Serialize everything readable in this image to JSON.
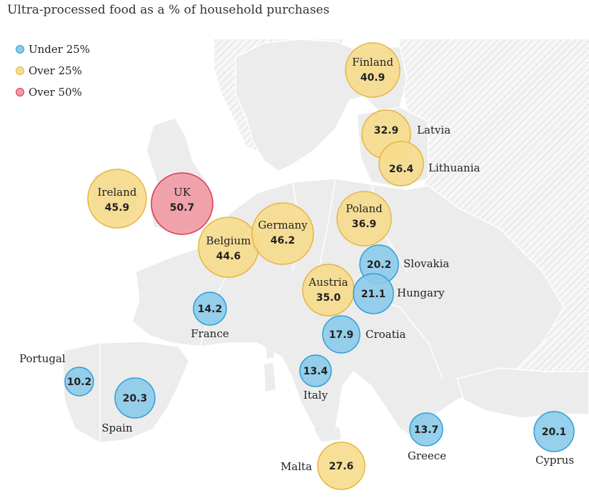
{
  "title": "Ultra-processed food as a % of household purchases",
  "legend": [
    {
      "label": "Under 25%",
      "fill": "#8ccbea",
      "stroke": "#2f9fd8"
    },
    {
      "label": "Over 25%",
      "fill": "#f7dc8c",
      "stroke": "#e6b540"
    },
    {
      "label": "Over 50%",
      "fill": "#f19aa4",
      "stroke": "#d9364b"
    }
  ],
  "colors": {
    "land": "#ececec",
    "land_outside": "#f4f4f4",
    "border": "#ffffff",
    "hatch": "#dcdcdc"
  },
  "countries": [
    {
      "name": "Finland",
      "value": "40.9",
      "category": "over25"
    },
    {
      "name": "Latvia",
      "value": "32.9",
      "category": "over25"
    },
    {
      "name": "Lithuania",
      "value": "26.4",
      "category": "over25"
    },
    {
      "name": "Ireland",
      "value": "45.9",
      "category": "over25"
    },
    {
      "name": "UK",
      "value": "50.7",
      "category": "over50"
    },
    {
      "name": "Germany",
      "value": "46.2",
      "category": "over25"
    },
    {
      "name": "Belgium",
      "value": "44.6",
      "category": "over25"
    },
    {
      "name": "Poland",
      "value": "36.9",
      "category": "over25"
    },
    {
      "name": "Slovakia",
      "value": "20.2",
      "category": "under25"
    },
    {
      "name": "Austria",
      "value": "35.0",
      "category": "over25"
    },
    {
      "name": "Hungary",
      "value": "21.1",
      "category": "under25"
    },
    {
      "name": "France",
      "value": "14.2",
      "category": "under25"
    },
    {
      "name": "Croatia",
      "value": "17.9",
      "category": "under25"
    },
    {
      "name": "Portugal",
      "value": "10.2",
      "category": "under25"
    },
    {
      "name": "Italy",
      "value": "13.4",
      "category": "under25"
    },
    {
      "name": "Spain",
      "value": "20.3",
      "category": "under25"
    },
    {
      "name": "Greece",
      "value": "13.7",
      "category": "under25"
    },
    {
      "name": "Cyprus",
      "value": "20.1",
      "category": "under25"
    },
    {
      "name": "Malta",
      "value": "27.6",
      "category": "over25"
    }
  ]
}
